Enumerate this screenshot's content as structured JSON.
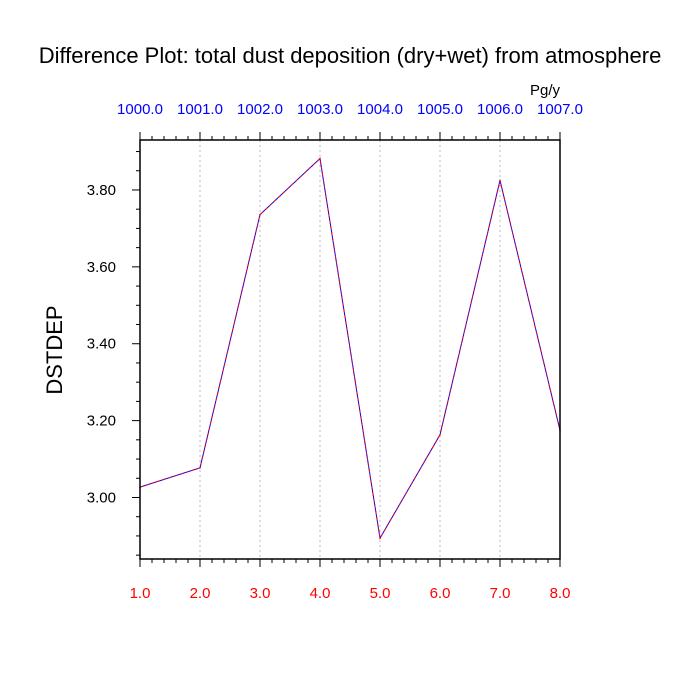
{
  "chart_data": {
    "type": "line",
    "title": "Difference Plot: total dust deposition (dry+wet) from atmosphere",
    "units": "Pg/y",
    "ylabel": "DSTDEP",
    "xlabel": "",
    "xlim": [
      1.0,
      8.0
    ],
    "ylim": [
      2.84,
      3.93
    ],
    "grid": {
      "vertical": true,
      "horizontal": false
    },
    "x_ticks": [
      "1.0",
      "2.0",
      "3.0",
      "4.0",
      "5.0",
      "6.0",
      "7.0",
      "8.0"
    ],
    "top_ticks": [
      "1000.0",
      "1001.0",
      "1002.0",
      "1003.0",
      "1004.0",
      "1005.0",
      "1006.0",
      "1007.0"
    ],
    "y_ticks": [
      3.0,
      3.2,
      3.4,
      3.6,
      3.8
    ],
    "y_tick_labels": [
      "3.00",
      "3.20",
      "3.40",
      "3.60",
      "3.80"
    ],
    "series": [
      {
        "x": [
          1.0,
          2.0,
          3.0,
          4.0,
          5.0,
          6.0,
          7.0,
          8.0
        ],
        "values": [
          3.027,
          3.077,
          3.736,
          3.882,
          2.894,
          3.163,
          3.825,
          3.175
        ],
        "colors": [
          "#0000ff",
          "#ff0000"
        ]
      }
    ],
    "colors": {
      "bottom_tick_labels": "#ff0000",
      "top_tick_labels": "#0000ff",
      "grid": "#bbbbbb",
      "axes": "#000000"
    }
  }
}
